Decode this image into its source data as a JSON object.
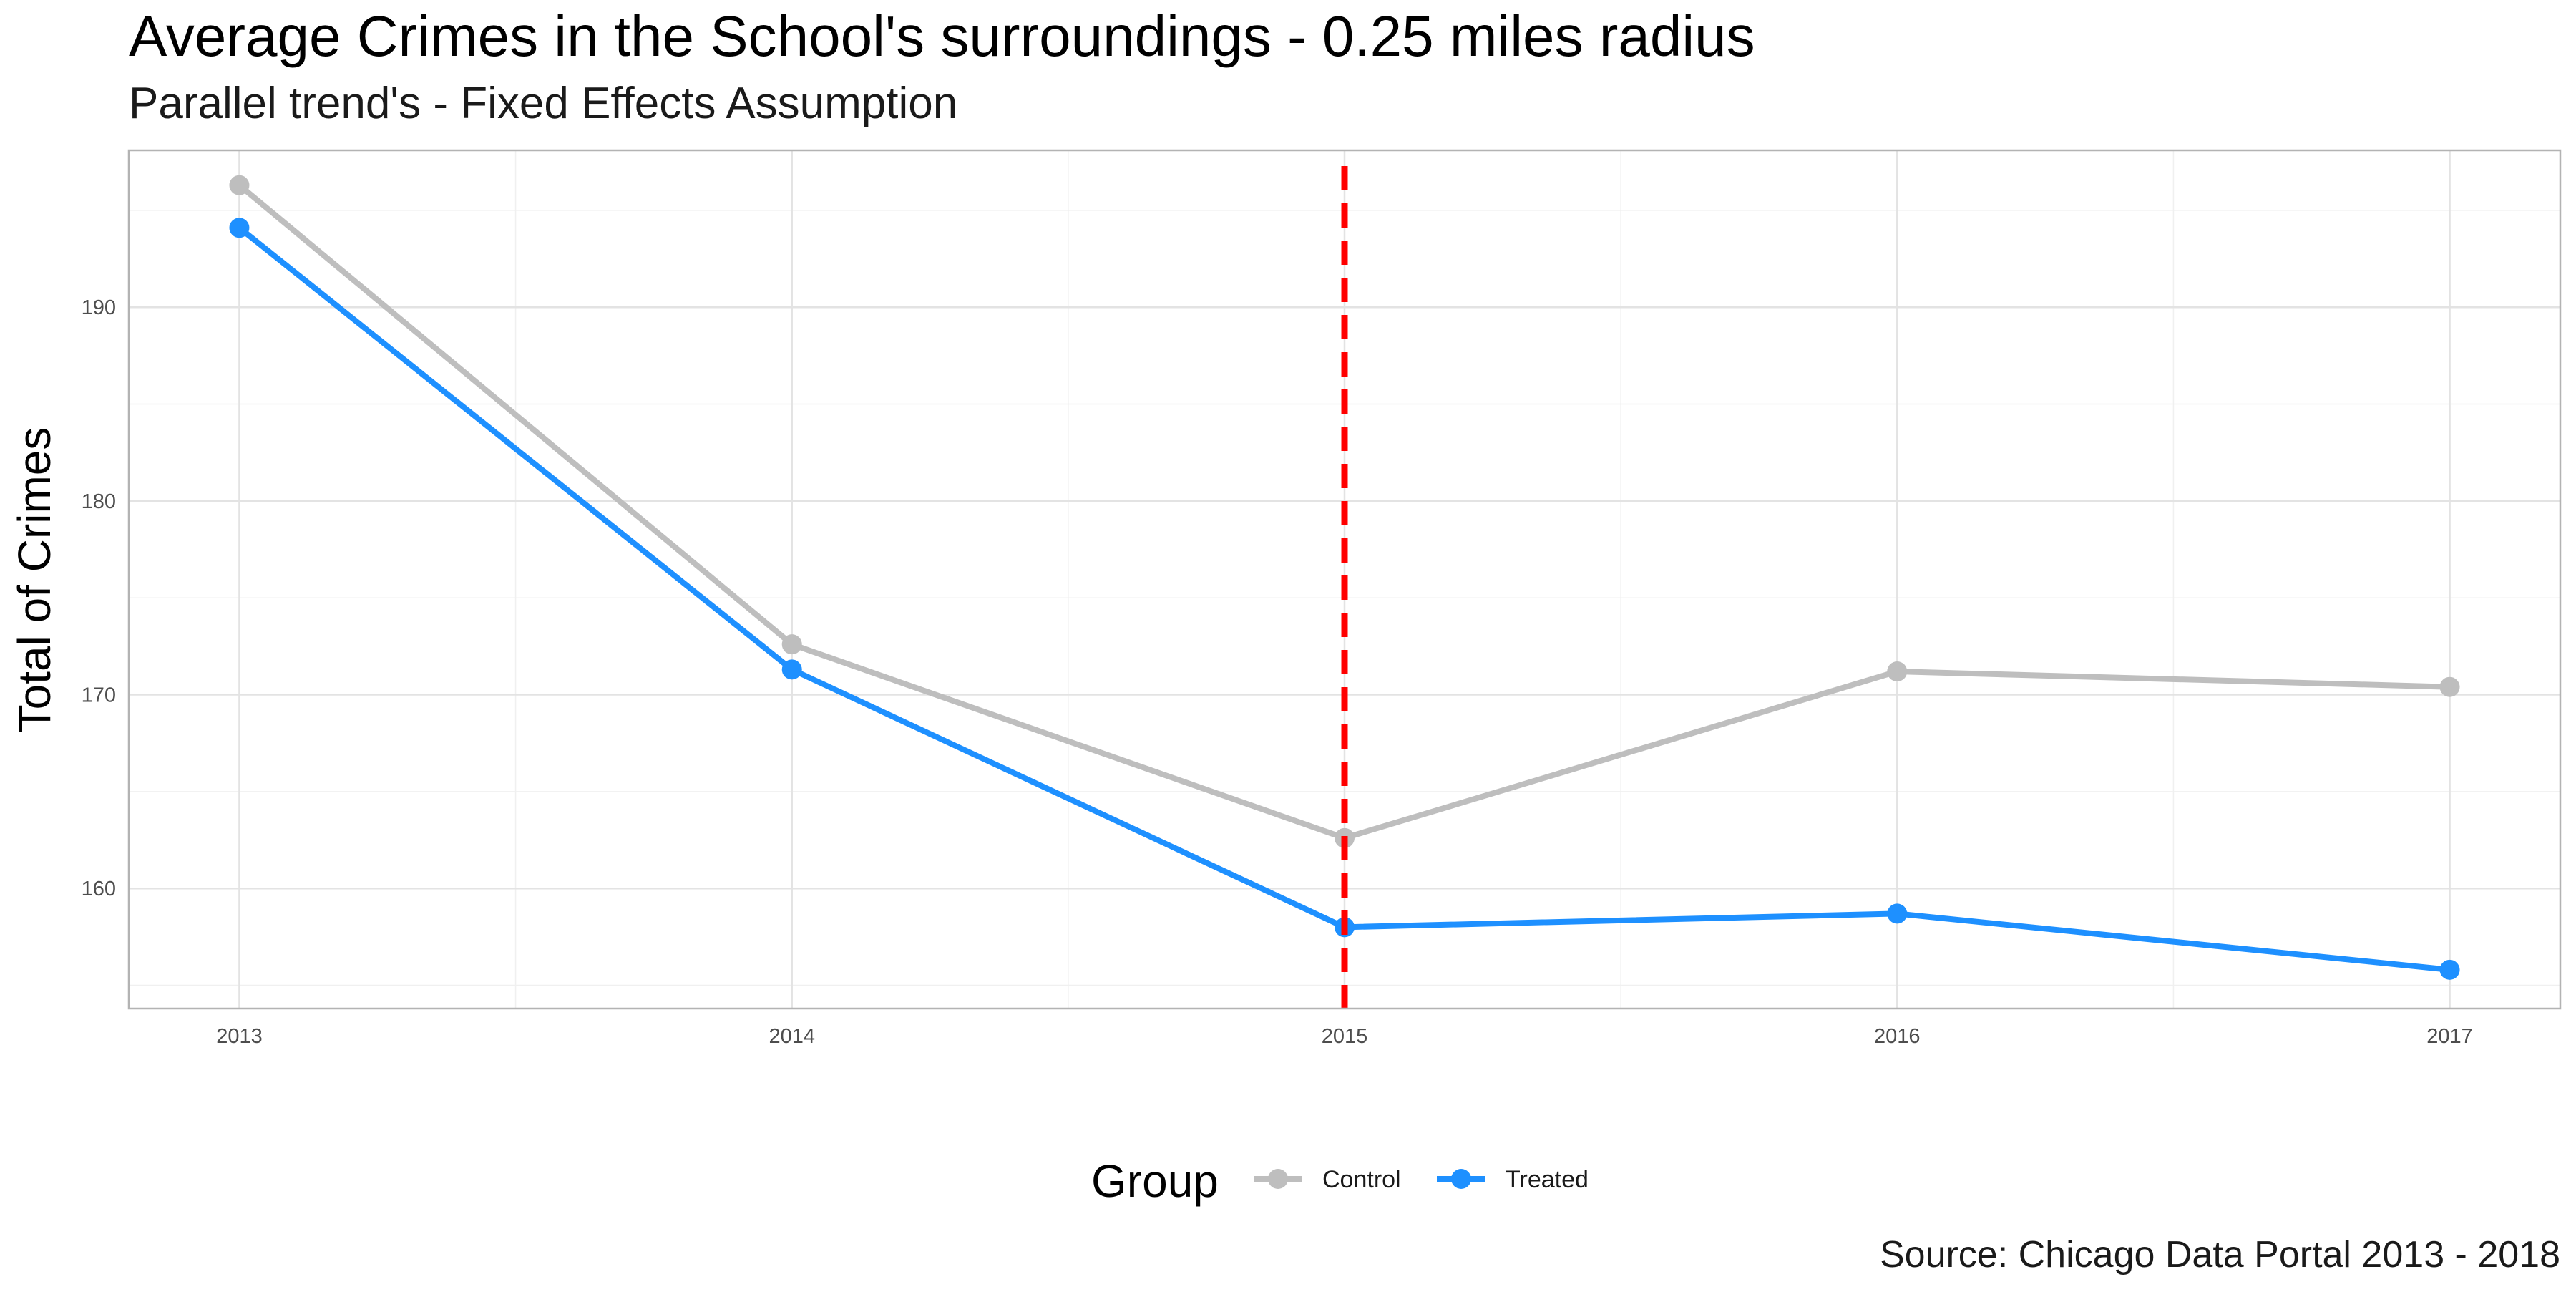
{
  "chart_data": {
    "type": "line",
    "title": "Average Crimes in the School's surroundings - 0.25 miles radius",
    "subtitle": "Parallel trend's - Fixed Effects Assumption",
    "caption": "Source: Chicago Data Portal 2013 - 2018",
    "xlabel": "",
    "ylabel": "Total of Crimes",
    "x": [
      2013,
      2014,
      2015,
      2016,
      2017
    ],
    "xlim": [
      2012.8,
      2017.2
    ],
    "ylim": [
      153.8,
      198.1
    ],
    "x_ticks": [
      "2013",
      "2014",
      "2015",
      "2016",
      "2017"
    ],
    "y_ticks": [
      160,
      170,
      180,
      190
    ],
    "y_tick_labels": [
      "160",
      "170",
      "180",
      "190"
    ],
    "grid": true,
    "series": [
      {
        "name": "Control",
        "color": "#bebebe",
        "values": [
          196.3,
          172.6,
          162.6,
          171.2,
          170.4
        ]
      },
      {
        "name": "Treated",
        "color": "#1e90ff",
        "values": [
          194.1,
          171.3,
          158.0,
          158.7,
          155.8
        ]
      }
    ],
    "vline": {
      "x": 2015,
      "color": "#ff0000",
      "style": "dashed"
    },
    "legend": {
      "title": "Group",
      "position": "bottom"
    }
  }
}
